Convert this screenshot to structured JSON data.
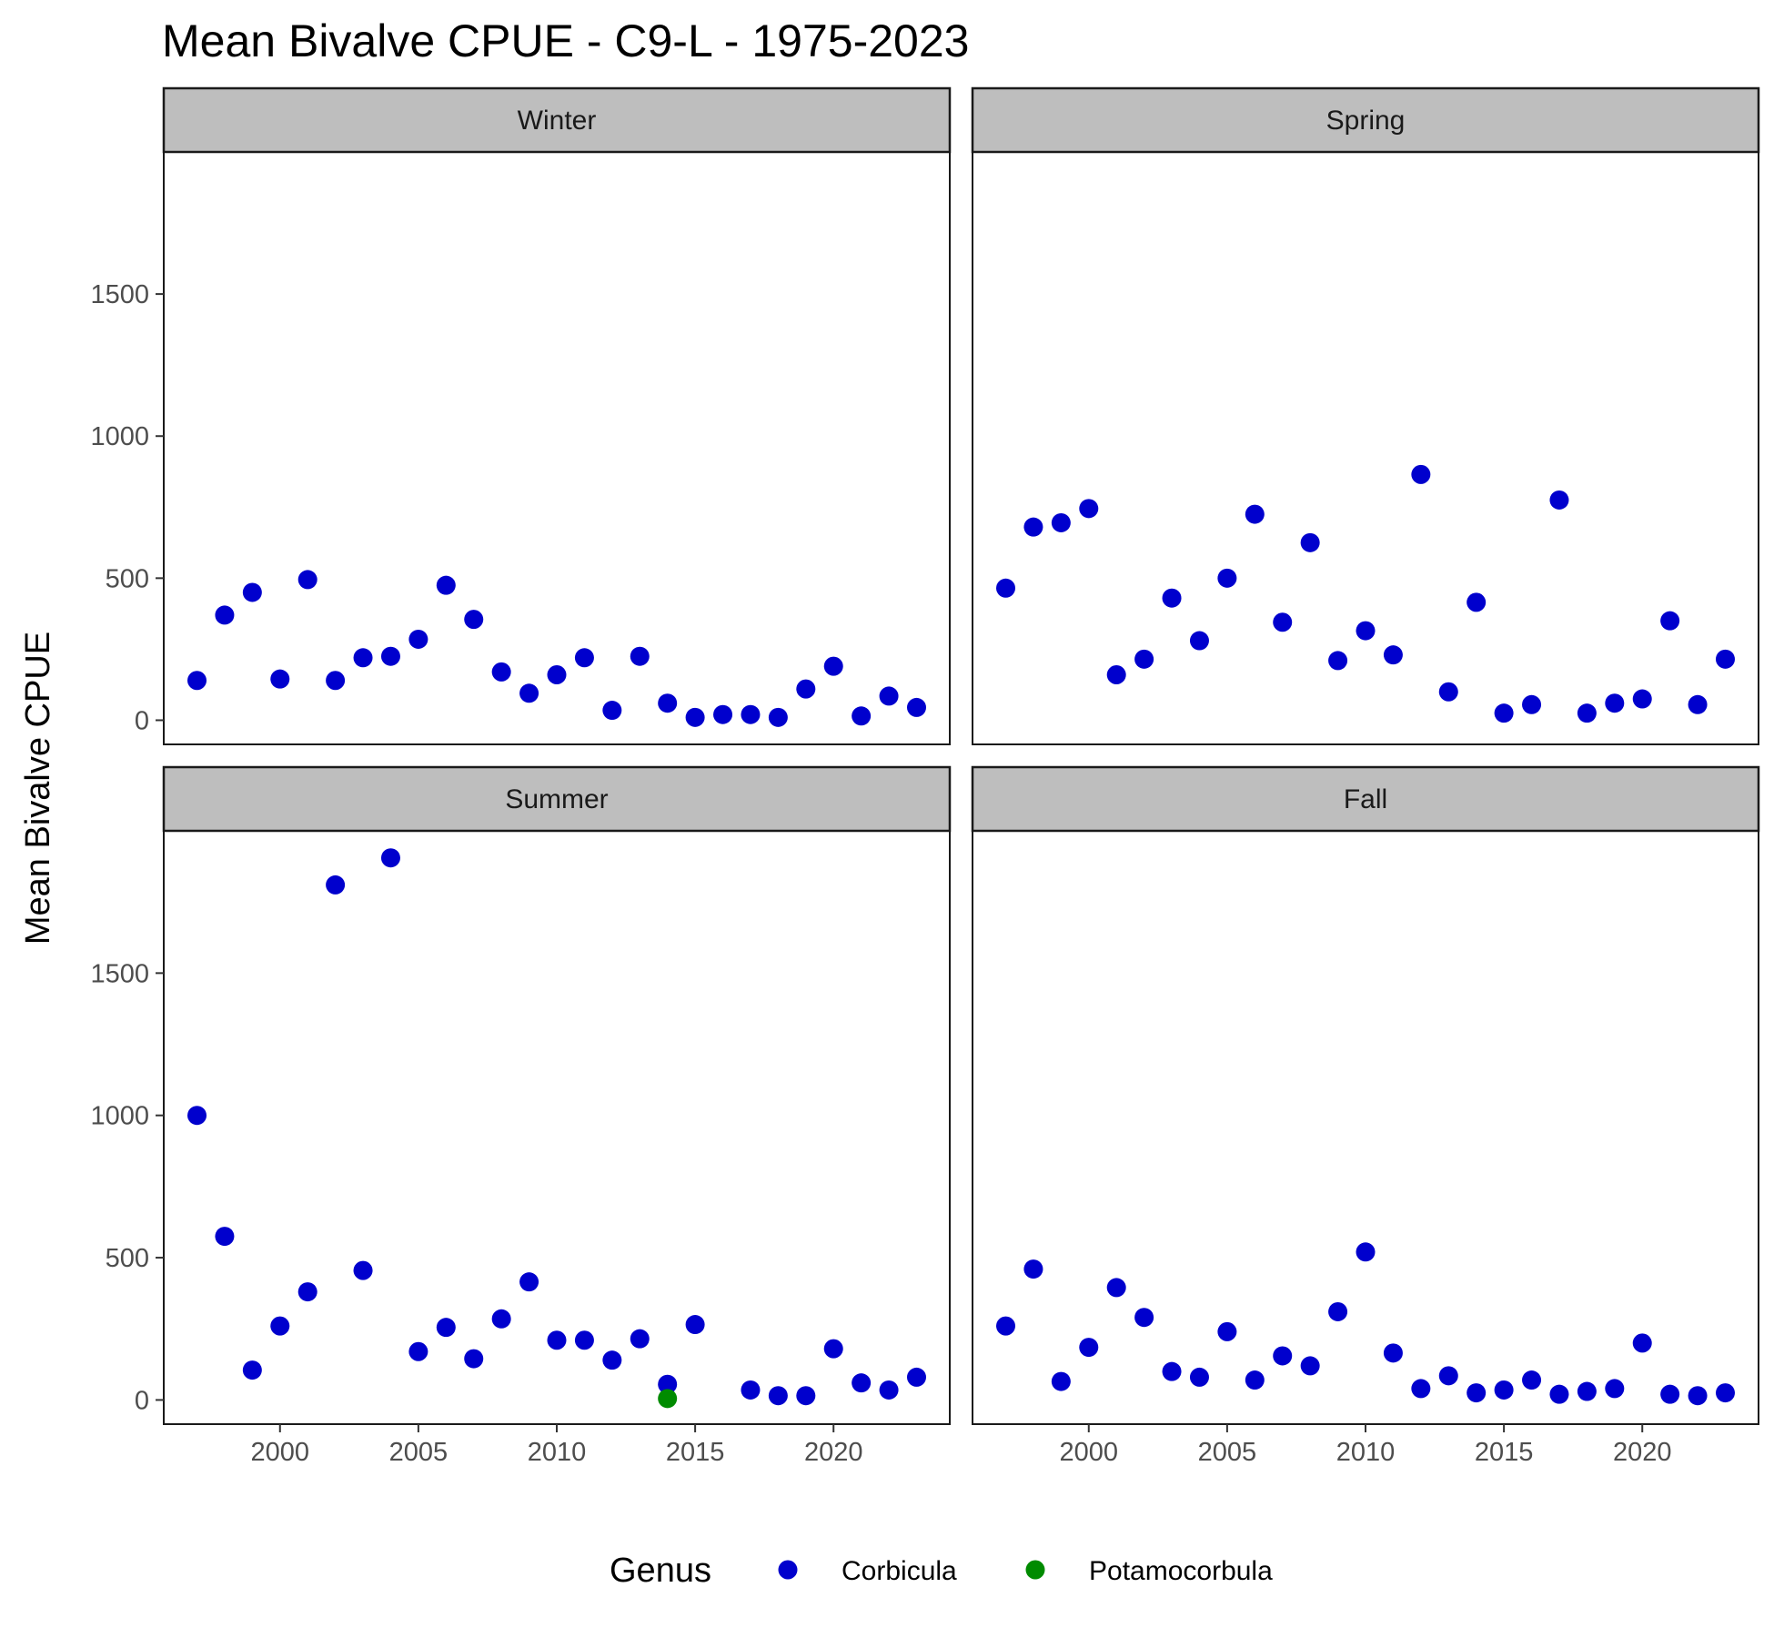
{
  "chart_data": {
    "type": "scatter",
    "title": "Mean Bivalve CPUE - C9-L - 1975-2023",
    "xlabel": "",
    "ylabel": "Mean Bivalve CPUE",
    "xlim": [
      1995.8,
      2024.2
    ],
    "ylim": [
      -85,
      2000
    ],
    "x_ticks": [
      2000,
      2005,
      2010,
      2015,
      2020
    ],
    "y_ticks": [
      0,
      500,
      1000,
      1500
    ],
    "grid": false,
    "legend": {
      "title": "Genus",
      "position": "bottom",
      "entries": [
        {
          "name": "Corbicula",
          "color": "#0000CD"
        },
        {
          "name": "Potamocorbula",
          "color": "#008B00"
        }
      ]
    },
    "panels": [
      {
        "label": "Winter",
        "series": [
          {
            "name": "Corbicula",
            "color": "#0000CD",
            "points": [
              [
                1997,
                140
              ],
              [
                1998,
                370
              ],
              [
                1999,
                450
              ],
              [
                2000,
                145
              ],
              [
                2001,
                495
              ],
              [
                2002,
                140
              ],
              [
                2003,
                220
              ],
              [
                2004,
                225
              ],
              [
                2005,
                285
              ],
              [
                2006,
                475
              ],
              [
                2007,
                355
              ],
              [
                2008,
                170
              ],
              [
                2009,
                95
              ],
              [
                2010,
                160
              ],
              [
                2011,
                220
              ],
              [
                2012,
                35
              ],
              [
                2013,
                225
              ],
              [
                2014,
                60
              ],
              [
                2015,
                10
              ],
              [
                2016,
                20
              ],
              [
                2017,
                20
              ],
              [
                2018,
                10
              ],
              [
                2019,
                110
              ],
              [
                2020,
                190
              ],
              [
                2021,
                15
              ],
              [
                2022,
                85
              ],
              [
                2023,
                45
              ]
            ]
          }
        ]
      },
      {
        "label": "Spring",
        "series": [
          {
            "name": "Corbicula",
            "color": "#0000CD",
            "points": [
              [
                1997,
                465
              ],
              [
                1998,
                680
              ],
              [
                1999,
                695
              ],
              [
                2000,
                745
              ],
              [
                2001,
                160
              ],
              [
                2002,
                215
              ],
              [
                2003,
                430
              ],
              [
                2004,
                280
              ],
              [
                2005,
                500
              ],
              [
                2006,
                725
              ],
              [
                2007,
                345
              ],
              [
                2008,
                625
              ],
              [
                2009,
                210
              ],
              [
                2010,
                315
              ],
              [
                2011,
                230
              ],
              [
                2012,
                865
              ],
              [
                2013,
                100
              ],
              [
                2014,
                415
              ],
              [
                2015,
                25
              ],
              [
                2016,
                55
              ],
              [
                2017,
                775
              ],
              [
                2018,
                25
              ],
              [
                2019,
                60
              ],
              [
                2020,
                75
              ],
              [
                2021,
                350
              ],
              [
                2022,
                55
              ],
              [
                2023,
                215
              ]
            ]
          }
        ]
      },
      {
        "label": "Summer",
        "series": [
          {
            "name": "Corbicula",
            "color": "#0000CD",
            "points": [
              [
                1997,
                1000
              ],
              [
                1998,
                575
              ],
              [
                1999,
                105
              ],
              [
                2000,
                260
              ],
              [
                2001,
                380
              ],
              [
                2002,
                1810
              ],
              [
                2003,
                455
              ],
              [
                2004,
                1905
              ],
              [
                2005,
                170
              ],
              [
                2006,
                255
              ],
              [
                2007,
                145
              ],
              [
                2008,
                285
              ],
              [
                2009,
                415
              ],
              [
                2010,
                210
              ],
              [
                2011,
                210
              ],
              [
                2012,
                140
              ],
              [
                2013,
                215
              ],
              [
                2014,
                55
              ],
              [
                2015,
                265
              ],
              [
                2017,
                35
              ],
              [
                2018,
                15
              ],
              [
                2019,
                15
              ],
              [
                2020,
                180
              ],
              [
                2021,
                60
              ],
              [
                2022,
                35
              ],
              [
                2023,
                80
              ]
            ]
          },
          {
            "name": "Potamocorbula",
            "color": "#008B00",
            "points": [
              [
                2014,
                5
              ]
            ]
          }
        ]
      },
      {
        "label": "Fall",
        "series": [
          {
            "name": "Corbicula",
            "color": "#0000CD",
            "points": [
              [
                1997,
                260
              ],
              [
                1998,
                460
              ],
              [
                1999,
                65
              ],
              [
                2000,
                185
              ],
              [
                2001,
                395
              ],
              [
                2002,
                290
              ],
              [
                2003,
                100
              ],
              [
                2004,
                80
              ],
              [
                2005,
                240
              ],
              [
                2006,
                70
              ],
              [
                2007,
                155
              ],
              [
                2008,
                120
              ],
              [
                2009,
                310
              ],
              [
                2010,
                520
              ],
              [
                2011,
                165
              ],
              [
                2012,
                40
              ],
              [
                2013,
                85
              ],
              [
                2014,
                25
              ],
              [
                2015,
                35
              ],
              [
                2016,
                70
              ],
              [
                2017,
                20
              ],
              [
                2018,
                30
              ],
              [
                2019,
                40
              ],
              [
                2020,
                200
              ],
              [
                2021,
                20
              ],
              [
                2022,
                15
              ],
              [
                2023,
                25
              ]
            ]
          }
        ]
      }
    ]
  }
}
